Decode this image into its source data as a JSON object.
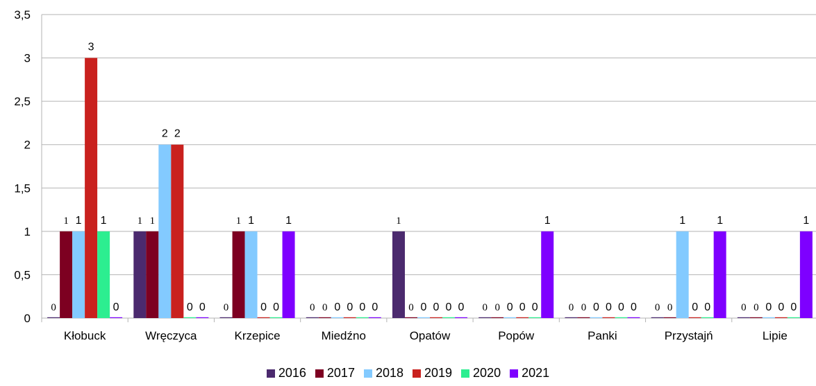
{
  "chart_data": {
    "type": "bar",
    "categories": [
      "Kłobuck",
      "Wręczyca",
      "Krzepice",
      "Miedźno",
      "Opatów",
      "Popów",
      "Panki",
      "Przystajń",
      "Lipie"
    ],
    "series": [
      {
        "name": "2016",
        "color": "#4b2a6e",
        "values": [
          0,
          1,
          0,
          0,
          1,
          0,
          0,
          0,
          0
        ]
      },
      {
        "name": "2017",
        "color": "#7d0021",
        "values": [
          1,
          1,
          1,
          0,
          0,
          0,
          0,
          0,
          0
        ]
      },
      {
        "name": "2018",
        "color": "#83caff",
        "values": [
          1,
          2,
          1,
          0,
          0,
          0,
          0,
          1,
          0
        ]
      },
      {
        "name": "2019",
        "color": "#c9211e",
        "values": [
          3,
          2,
          0,
          0,
          0,
          0,
          0,
          0,
          0
        ]
      },
      {
        "name": "2020",
        "color": "#2cee90",
        "values": [
          1,
          0,
          0,
          0,
          0,
          0,
          0,
          0,
          0
        ]
      },
      {
        "name": "2021",
        "color": "#7e00ff",
        "values": [
          0,
          0,
          1,
          0,
          0,
          1,
          0,
          1,
          1
        ]
      }
    ],
    "data_labels": [
      [
        "0",
        "1",
        "1",
        "3",
        "1",
        "0"
      ],
      [
        "1",
        "1",
        "2",
        "2",
        "0",
        "0"
      ],
      [
        "0",
        "1",
        "1",
        "0",
        "0",
        "1"
      ],
      [
        "0",
        "0",
        "0",
        "0",
        "0",
        "0"
      ],
      [
        "1",
        "0",
        "0",
        "0",
        "0",
        "0"
      ],
      [
        "0",
        "0",
        "0",
        "0",
        "0",
        "1"
      ],
      [
        "0",
        "0",
        "0",
        "0",
        "0",
        "0"
      ],
      [
        "0",
        "0",
        "1",
        "0",
        "0",
        "1"
      ],
      [
        "0",
        "0",
        "0",
        "0",
        "0",
        "1"
      ]
    ],
    "y_tick_labels": [
      "0",
      "0,5",
      "1",
      "1,5",
      "2",
      "2,5",
      "3",
      "3,5"
    ],
    "ylim": [
      0,
      3.5
    ],
    "grid": true,
    "legend_position": "bottom",
    "title": "",
    "xlabel": "",
    "ylabel": ""
  }
}
